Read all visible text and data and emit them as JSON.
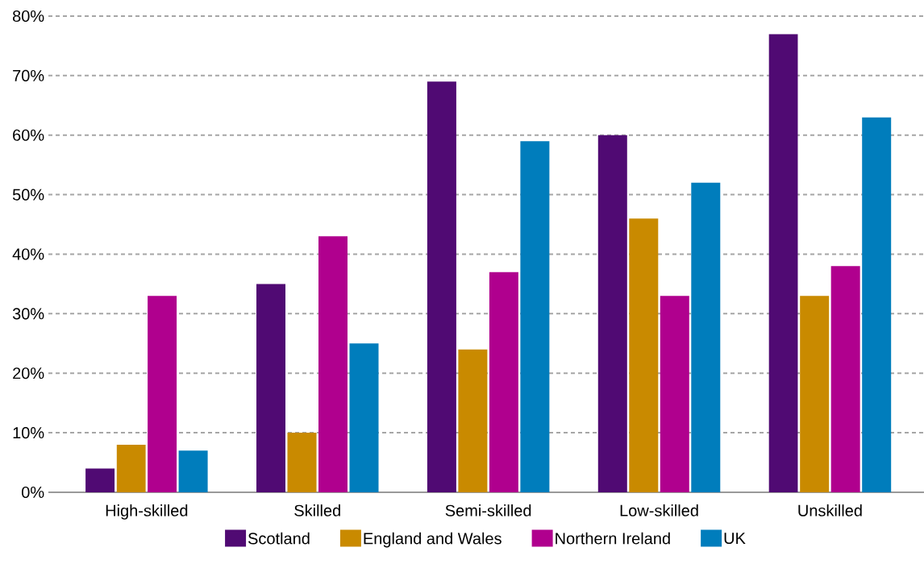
{
  "chart_data": {
    "type": "bar",
    "categories": [
      "High-skilled",
      "Skilled",
      "Semi-skilled",
      "Low-skilled",
      "Unskilled"
    ],
    "series": [
      {
        "name": "Scotland",
        "color": "#500a73",
        "values": [
          4,
          35,
          69,
          60,
          77
        ]
      },
      {
        "name": "England and Wales",
        "color": "#c98a00",
        "values": [
          8,
          10,
          24,
          46,
          33
        ]
      },
      {
        "name": "Northern Ireland",
        "color": "#b0008e",
        "values": [
          33,
          43,
          37,
          33,
          38
        ]
      },
      {
        "name": "UK",
        "color": "#007dbc",
        "values": [
          7,
          25,
          59,
          52,
          63
        ]
      }
    ],
    "ylim": [
      0,
      80
    ],
    "yticks": [
      {
        "value": 0,
        "label": "0%"
      },
      {
        "value": 10,
        "label": "10%"
      },
      {
        "value": 20,
        "label": "20%"
      },
      {
        "value": 30,
        "label": "30%"
      },
      {
        "value": 40,
        "label": "40%"
      },
      {
        "value": 50,
        "label": "50%"
      },
      {
        "value": 60,
        "label": "60%"
      },
      {
        "value": 70,
        "label": "70%"
      },
      {
        "value": 80,
        "label": "80%"
      }
    ],
    "grid": "y",
    "legend": "bottom"
  }
}
